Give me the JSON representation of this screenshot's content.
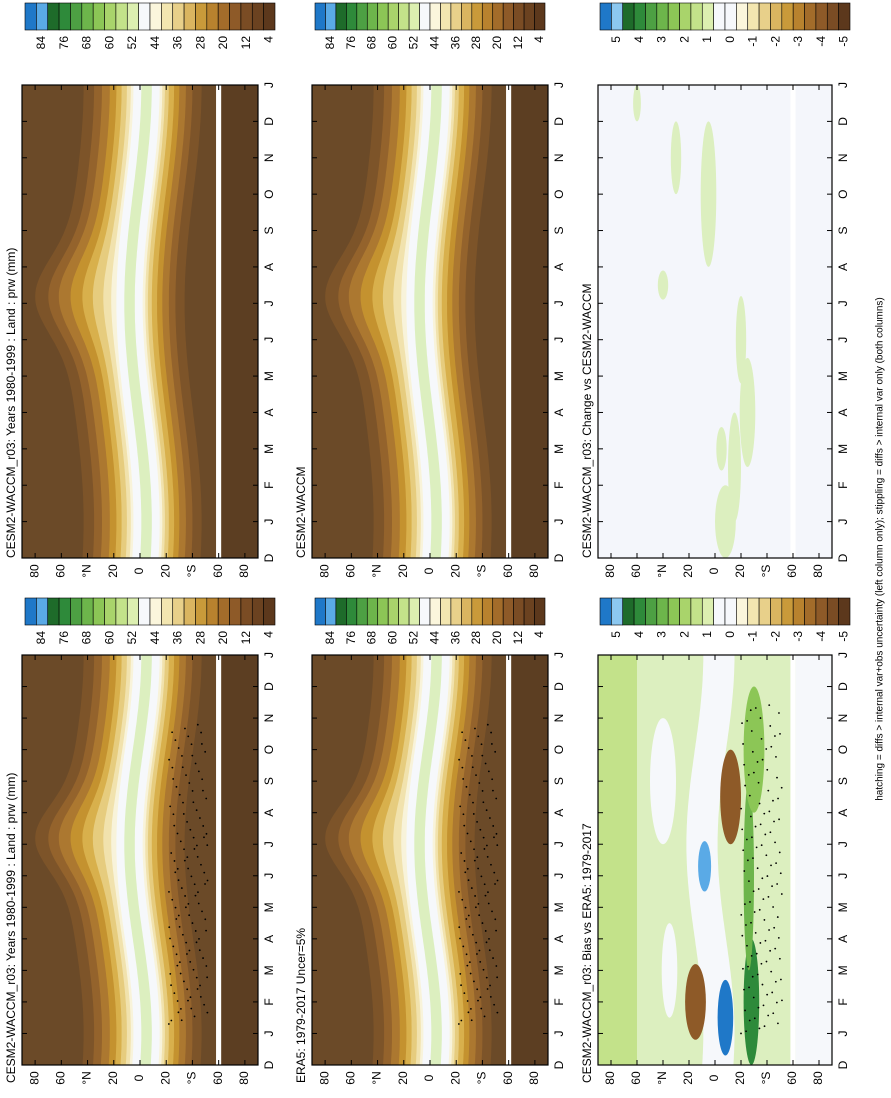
{
  "panels": [
    {
      "type": "prw",
      "title": "CESM2-WACCM_r03: Years 1980-1999 : Land : prw (mm)",
      "colorbar": [
        84,
        76,
        68,
        60,
        52,
        44,
        36,
        28,
        20,
        12,
        4
      ]
    },
    {
      "type": "prw",
      "title": "CESM2-WACCM_r03: Years 1980-1999 : Land : prw (mm)",
      "colorbar": [
        84,
        76,
        68,
        60,
        52,
        44,
        36,
        28,
        20,
        12,
        4
      ]
    },
    {
      "type": "prw",
      "title": "ERA5: 1979-2017 Uncer=5%",
      "colorbar": [
        84,
        76,
        68,
        60,
        52,
        44,
        36,
        28,
        20,
        12,
        4
      ]
    },
    {
      "type": "prw",
      "title": "CESM2-WACCM",
      "colorbar": [
        84,
        76,
        68,
        60,
        52,
        44,
        36,
        28,
        20,
        12,
        4
      ]
    },
    {
      "type": "bias",
      "title": "CESM2-WACCM_r03: Bias vs ERA5: 1979-2017",
      "colorbar": [
        5,
        4,
        3,
        2,
        1,
        0,
        -1,
        -2,
        -3,
        -4,
        -5
      ]
    },
    {
      "type": "change",
      "title": "CESM2-WACCM_r03: Change vs CESM2-WACCM",
      "colorbar": [
        5,
        4,
        3,
        2,
        1,
        0,
        -1,
        -2,
        -3,
        -4,
        -5
      ]
    }
  ],
  "lat_labels": [
    "80",
    "60",
    "°N",
    "20",
    "0",
    "20",
    "°S",
    "60",
    "80"
  ],
  "month_labels": [
    "D",
    "J",
    "F",
    "M",
    "A",
    "M",
    "J",
    "J",
    "A",
    "S",
    "O",
    "N",
    "D",
    "J"
  ],
  "caption": "hatching = diffs > internal var+obs uncertainty (left column only); stippling = diffs > internal var only (both columns)"
}
